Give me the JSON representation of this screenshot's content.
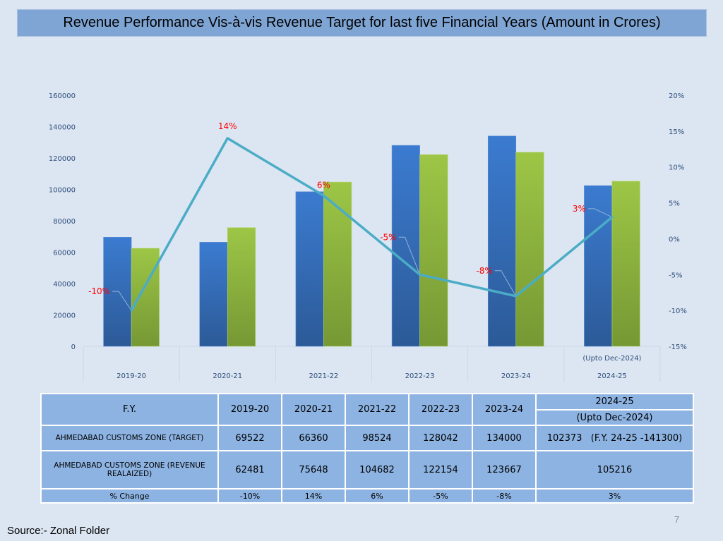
{
  "title": "Revenue Performance Vis-à-vis Revenue Target for last five Financial Years (Amount in Crores)",
  "chart_data": {
    "type": "bar",
    "categories": [
      "2019-20",
      "2020-21",
      "2021-22",
      "2022-23",
      "2023-24",
      "2024-25"
    ],
    "category_sublabels": [
      "",
      "",
      "",
      "",
      "",
      "(Upto Dec-2024)"
    ],
    "series": [
      {
        "name": "AHMEDABAD CUSTOMS ZONE (TARGET)",
        "type": "bar",
        "axis": "left",
        "color": "#3a78c9",
        "values": [
          69522,
          66360,
          98524,
          128042,
          134000,
          102373
        ]
      },
      {
        "name": "AHMEDABAD CUSTOMS ZONE (REVENUE REALAIZED)",
        "type": "bar",
        "axis": "left",
        "color": "#9bc346",
        "values": [
          62481,
          75648,
          104682,
          122154,
          123667,
          105216
        ]
      },
      {
        "name": "% Change",
        "type": "line",
        "axis": "right",
        "color": "#4bacc6",
        "values": [
          -10,
          14,
          6,
          -5,
          -8,
          3
        ]
      }
    ],
    "data_labels": [
      "-10%",
      "14%",
      "6%",
      "-5%",
      "-8%",
      "3%"
    ],
    "y_left": {
      "min": 0,
      "max": 160000,
      "ticks": [
        "0",
        "20000",
        "40000",
        "60000",
        "80000",
        "100000",
        "120000",
        "140000",
        "160000"
      ]
    },
    "y_right": {
      "min": -15,
      "max": 20,
      "ticks": [
        "-15%",
        "-10%",
        "-5%",
        "0%",
        "5%",
        "10%",
        "15%",
        "20%"
      ]
    },
    "xlabel": "",
    "ylabel": "",
    "grid": false,
    "legend": "none"
  },
  "table": {
    "header_label": "F.Y.",
    "years": [
      "2019-20",
      "2020-21",
      "2021-22",
      "2022-23",
      "2023-24"
    ],
    "last_year": "2024-25",
    "last_year_note": "(Upto Dec-2024)",
    "rows": [
      {
        "label": "AHMEDABAD CUSTOMS ZONE  (TARGET)",
        "values": [
          "69522",
          "66360",
          "98524",
          "128042",
          "134000"
        ],
        "last": "102373   (F.Y. 24-25 -141300)"
      },
      {
        "label": "AHMEDABAD CUSTOMS ZONE  (REVENUE REALAIZED)",
        "values": [
          "62481",
          "75648",
          "104682",
          "122154",
          "123667"
        ],
        "last": "105216"
      },
      {
        "label": "% Change",
        "values": [
          "-10%",
          "14%",
          "6%",
          "-5%",
          "-8%"
        ],
        "last": "3%"
      }
    ]
  },
  "source": "Source:- Zonal Folder",
  "page_number": "7"
}
